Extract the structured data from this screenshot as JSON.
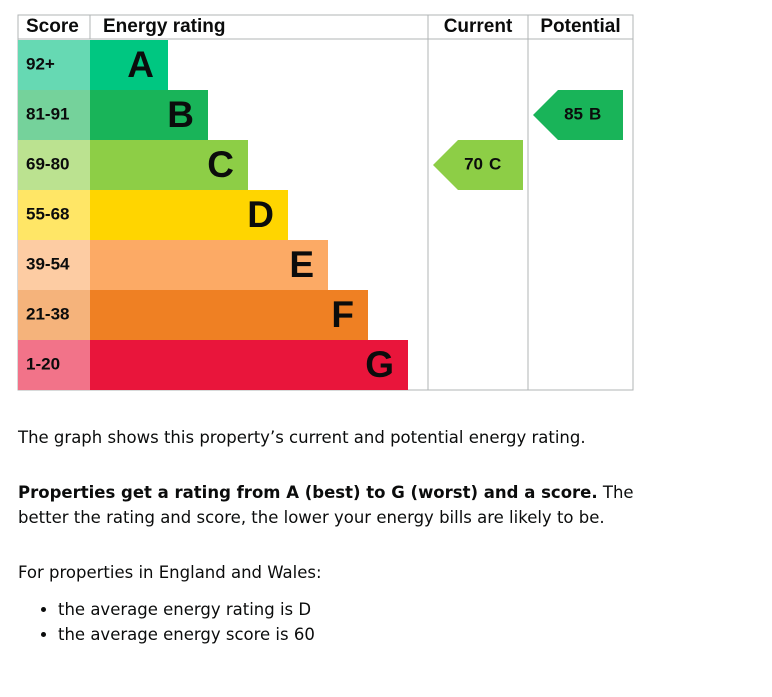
{
  "rating_table": {
    "headers": [
      "Score",
      "Energy rating",
      "Current",
      "Potential"
    ],
    "rows": [
      {
        "score": "92+",
        "band": "A",
        "color": "#00c781",
        "score_color": "#66d9b3"
      },
      {
        "score": "81-91",
        "band": "B",
        "color": "#19b459",
        "score_color": "#75d29b"
      },
      {
        "score": "69-80",
        "band": "C",
        "color": "#8dce46",
        "score_color": "#bbe290"
      },
      {
        "score": "55-68",
        "band": "D",
        "color": "#ffd500",
        "score_color": "#ffe666"
      },
      {
        "score": "39-54",
        "band": "E",
        "color": "#fcaa65",
        "score_color": "#fdcca3"
      },
      {
        "score": "21-38",
        "band": "F",
        "color": "#ef8023",
        "score_color": "#f5b37b"
      },
      {
        "score": "1-20",
        "band": "G",
        "color": "#e9153b",
        "score_color": "#f27389"
      }
    ],
    "current": {
      "score": 70,
      "band": "C",
      "row": 2
    },
    "potential": {
      "score": 85,
      "band": "B",
      "row": 1
    }
  },
  "text": {
    "intro": "The graph shows this property’s current and potential energy rating.",
    "rating_bold": "Properties get a rating from A (best) to G (worst) and a score.",
    "rating_rest": "The better the rating and score, the lower your energy bills are likely to be.",
    "average_intro": "For properties in England and Wales:",
    "bullets": [
      "the average energy rating is D",
      "the average energy score is 60"
    ]
  }
}
